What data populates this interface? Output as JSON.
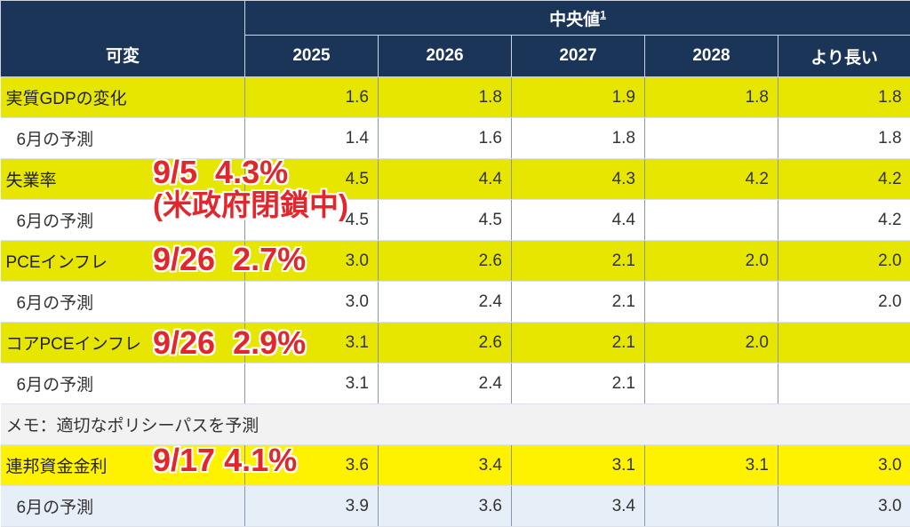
{
  "header": {
    "variable": "可変",
    "median": "中央値",
    "median_footnote": "1",
    "years": [
      "2025",
      "2026",
      "2027",
      "2028",
      "より長い"
    ]
  },
  "rows": [
    {
      "type": "main",
      "label": "実質GDPの変化",
      "values": [
        "1.6",
        "1.8",
        "1.9",
        "1.8",
        "1.8"
      ]
    },
    {
      "type": "sub",
      "label": "6月の予測",
      "values": [
        "1.4",
        "1.6",
        "1.8",
        "",
        "1.8"
      ]
    },
    {
      "type": "main",
      "label": "失業率",
      "values": [
        "4.5",
        "4.4",
        "4.3",
        "4.2",
        "4.2"
      ]
    },
    {
      "type": "sub",
      "label": "6月の予測",
      "values": [
        "4.5",
        "4.5",
        "4.4",
        "",
        "4.2"
      ]
    },
    {
      "type": "main",
      "label": "PCEインフレ",
      "values": [
        "3.0",
        "2.6",
        "2.1",
        "2.0",
        "2.0"
      ]
    },
    {
      "type": "sub",
      "label": "6月の予測",
      "values": [
        "3.0",
        "2.4",
        "2.1",
        "",
        "2.0"
      ]
    },
    {
      "type": "main",
      "label": "コアPCEインフレ",
      "values": [
        "3.1",
        "2.6",
        "2.1",
        "2.0",
        ""
      ]
    },
    {
      "type": "sub",
      "label": "6月の予測",
      "values": [
        "3.1",
        "2.4",
        "2.1",
        "",
        ""
      ]
    }
  ],
  "memo": "メモ：適切なポリシーパスを予測",
  "ff_rows": [
    {
      "type": "main",
      "label": "連邦資金金利",
      "values": [
        "3.6",
        "3.4",
        "3.1",
        "3.1",
        "3.0"
      ]
    },
    {
      "type": "sub",
      "label": "6月の予測",
      "values": [
        "3.9",
        "3.6",
        "3.4",
        "",
        "3.0"
      ]
    }
  ],
  "annotations": {
    "unemployment": "9/5  4.3%",
    "shutdown": "(米政府閉鎖中)",
    "pce": "9/26  2.7%",
    "core_pce": "9/26  2.9%",
    "fed_funds": "9/17 4.1%"
  },
  "colors": {
    "header": "#1b3558",
    "highlight": "#e6e600",
    "annotation": "#e3262b"
  }
}
